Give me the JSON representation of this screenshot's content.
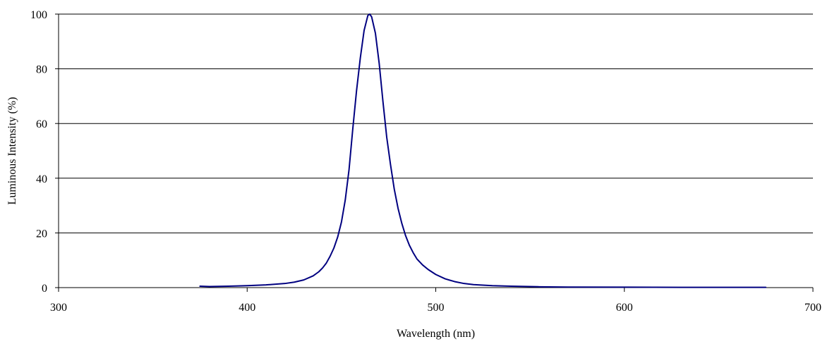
{
  "chart_data": {
    "type": "line",
    "title": "",
    "xlabel": "Wavelength (nm)",
    "ylabel": "Luminous Intensity (%)",
    "xlim": [
      300,
      700
    ],
    "ylim": [
      0,
      100
    ],
    "xticks": [
      300,
      400,
      500,
      600,
      700
    ],
    "yticks": [
      0,
      20,
      40,
      60,
      80,
      100
    ],
    "x_tick_labels": [
      "300",
      "400",
      "500",
      "600",
      "700"
    ],
    "y_tick_labels": [
      "0",
      "20",
      "40",
      "60",
      "80",
      "100"
    ],
    "grid": "horizontal",
    "legend": "none",
    "series": [
      {
        "color": "#000080",
        "x": [
          375,
          380,
          390,
          400,
          410,
          420,
          425,
          430,
          435,
          438,
          440,
          442,
          444,
          446,
          448,
          450,
          452,
          454,
          456,
          458,
          460,
          462,
          464,
          465,
          466,
          468,
          470,
          472,
          474,
          476,
          478,
          480,
          482,
          484,
          486,
          488,
          490,
          493,
          496,
          500,
          505,
          510,
          515,
          520,
          530,
          540,
          555,
          570,
          600,
          630,
          650,
          675
        ],
        "y": [
          0.5,
          0.4,
          0.5,
          0.7,
          1.0,
          1.5,
          2.0,
          2.8,
          4.3,
          5.8,
          7.2,
          9.0,
          11.5,
          14.5,
          18.5,
          24.0,
          32.0,
          43.0,
          58.0,
          72.0,
          84.0,
          94.0,
          99.5,
          100.0,
          99.0,
          93.0,
          82.0,
          68.0,
          55.0,
          45.0,
          36.0,
          29.0,
          23.5,
          19.0,
          15.5,
          12.8,
          10.5,
          8.3,
          6.6,
          4.8,
          3.2,
          2.2,
          1.5,
          1.1,
          0.7,
          0.5,
          0.3,
          0.2,
          0.15,
          0.1,
          0.1,
          0.1
        ]
      }
    ]
  }
}
